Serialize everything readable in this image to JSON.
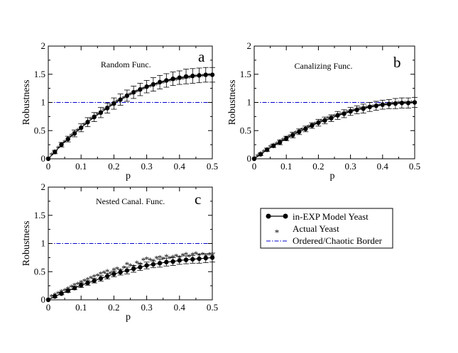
{
  "chart_data": [
    {
      "id": "a",
      "type": "line",
      "title": "Random Func.",
      "letter": "a",
      "xlabel": "p",
      "ylabel": "Robustness",
      "xlim": [
        0,
        0.5
      ],
      "ylim": [
        0,
        2
      ],
      "xticks": [
        0,
        0.1,
        0.2,
        0.3,
        0.4,
        0.5
      ],
      "xtick_labels": [
        "0",
        "0.1",
        "0.2",
        "0.3",
        "0.4",
        "0.5"
      ],
      "yticks": [
        0,
        0.5,
        1,
        1.5,
        2
      ],
      "ytick_labels": [
        "0",
        "0.5",
        "1",
        "1.5",
        "2"
      ],
      "border_y": 1,
      "series": [
        {
          "name": "in-EXP Model Yeast",
          "x": [
            0,
            0.02,
            0.04,
            0.06,
            0.08,
            0.1,
            0.12,
            0.14,
            0.16,
            0.18,
            0.2,
            0.22,
            0.24,
            0.26,
            0.28,
            0.3,
            0.32,
            0.34,
            0.36,
            0.38,
            0.4,
            0.42,
            0.44,
            0.46,
            0.48,
            0.5
          ],
          "y": [
            0,
            0.12,
            0.25,
            0.35,
            0.45,
            0.55,
            0.65,
            0.74,
            0.82,
            0.9,
            0.98,
            1.05,
            1.12,
            1.18,
            1.23,
            1.28,
            1.32,
            1.36,
            1.39,
            1.42,
            1.44,
            1.46,
            1.47,
            1.48,
            1.49,
            1.49
          ],
          "err": [
            0,
            0.03,
            0.04,
            0.05,
            0.06,
            0.07,
            0.08,
            0.08,
            0.09,
            0.09,
            0.1,
            0.1,
            0.1,
            0.11,
            0.11,
            0.11,
            0.12,
            0.12,
            0.12,
            0.12,
            0.12,
            0.13,
            0.13,
            0.13,
            0.13,
            0.13
          ]
        },
        {
          "name": "Actual Yeast",
          "x": [
            0,
            0.01,
            0.02,
            0.03,
            0.04,
            0.05,
            0.06,
            0.07,
            0.08,
            0.09,
            0.1,
            0.11,
            0.12,
            0.13,
            0.14,
            0.15,
            0.16,
            0.17,
            0.18,
            0.19,
            0.2,
            0.21,
            0.22,
            0.23,
            0.24,
            0.25,
            0.26,
            0.27,
            0.28,
            0.29,
            0.3,
            0.31,
            0.32,
            0.33,
            0.34,
            0.35,
            0.36,
            0.37,
            0.38,
            0.39,
            0.4,
            0.41,
            0.42,
            0.43,
            0.44,
            0.45,
            0.46,
            0.47,
            0.48,
            0.49,
            0.5
          ],
          "y": [
            0,
            0.06,
            0.12,
            0.18,
            0.23,
            0.29,
            0.34,
            0.4,
            0.45,
            0.5,
            0.55,
            0.6,
            0.65,
            0.7,
            0.74,
            0.78,
            0.82,
            0.86,
            0.9,
            0.94,
            0.98,
            1.01,
            1.04,
            1.07,
            1.1,
            1.13,
            1.16,
            1.18,
            1.2,
            1.23,
            1.25,
            1.27,
            1.29,
            1.31,
            1.33,
            1.34,
            1.36,
            1.37,
            1.38,
            1.39,
            1.4,
            1.41,
            1.42,
            1.43,
            1.44,
            1.45,
            1.46,
            1.46,
            1.47,
            1.47,
            1.48
          ]
        }
      ]
    },
    {
      "id": "b",
      "type": "line",
      "title": "Canalizing Func.",
      "letter": "b",
      "xlabel": "p",
      "ylabel": "Robustness",
      "xlim": [
        0,
        0.5
      ],
      "ylim": [
        0,
        2
      ],
      "xticks": [
        0,
        0.1,
        0.2,
        0.3,
        0.4,
        0.5
      ],
      "xtick_labels": [
        "0",
        "0.1",
        "0.2",
        "0.3",
        "0.4",
        "0.5"
      ],
      "yticks": [
        0,
        0.5,
        1,
        1.5,
        2
      ],
      "ytick_labels": [
        "0",
        "0.5",
        "1",
        "1.5",
        "2"
      ],
      "border_y": 1,
      "series": [
        {
          "name": "in-EXP Model Yeast",
          "x": [
            0,
            0.02,
            0.04,
            0.06,
            0.08,
            0.1,
            0.12,
            0.14,
            0.16,
            0.18,
            0.2,
            0.22,
            0.24,
            0.26,
            0.28,
            0.3,
            0.32,
            0.34,
            0.36,
            0.38,
            0.4,
            0.42,
            0.44,
            0.46,
            0.48,
            0.5
          ],
          "y": [
            0,
            0.08,
            0.16,
            0.23,
            0.29,
            0.36,
            0.42,
            0.48,
            0.53,
            0.59,
            0.64,
            0.68,
            0.72,
            0.77,
            0.8,
            0.84,
            0.87,
            0.89,
            0.92,
            0.94,
            0.96,
            0.97,
            0.98,
            0.99,
            0.99,
            1.0
          ],
          "err": [
            0,
            0.02,
            0.03,
            0.03,
            0.04,
            0.04,
            0.05,
            0.05,
            0.05,
            0.05,
            0.06,
            0.06,
            0.06,
            0.07,
            0.07,
            0.07,
            0.07,
            0.08,
            0.08,
            0.08,
            0.08,
            0.08,
            0.09,
            0.09,
            0.09,
            0.09
          ]
        },
        {
          "name": "Actual Yeast",
          "x": [
            0,
            0.01,
            0.02,
            0.03,
            0.04,
            0.05,
            0.06,
            0.07,
            0.08,
            0.09,
            0.1,
            0.11,
            0.12,
            0.13,
            0.14,
            0.15,
            0.16,
            0.17,
            0.18,
            0.19,
            0.2,
            0.21,
            0.22,
            0.23,
            0.24,
            0.25,
            0.26,
            0.27,
            0.28,
            0.29,
            0.3,
            0.31,
            0.32,
            0.33,
            0.34,
            0.35,
            0.36,
            0.37,
            0.38,
            0.39,
            0.4,
            0.41,
            0.42,
            0.43,
            0.44,
            0.45,
            0.46,
            0.47,
            0.48,
            0.49,
            0.5
          ],
          "y": [
            0,
            0.04,
            0.08,
            0.12,
            0.16,
            0.2,
            0.23,
            0.26,
            0.3,
            0.33,
            0.36,
            0.39,
            0.42,
            0.45,
            0.48,
            0.51,
            0.53,
            0.56,
            0.59,
            0.61,
            0.64,
            0.66,
            0.68,
            0.71,
            0.73,
            0.75,
            0.77,
            0.78,
            0.8,
            0.82,
            0.84,
            0.85,
            0.86,
            0.88,
            0.89,
            0.9,
            0.91,
            0.92,
            0.93,
            0.94,
            0.95,
            0.95,
            0.96,
            0.97,
            0.97,
            0.98,
            0.98,
            0.98,
            0.99,
            0.99,
            0.99
          ]
        }
      ]
    },
    {
      "id": "c",
      "type": "line",
      "title": "Nested Canal. Func.",
      "letter": "c",
      "xlabel": "p",
      "ylabel": "Robustness",
      "xlim": [
        0,
        0.5
      ],
      "ylim": [
        0,
        2
      ],
      "xticks": [
        0,
        0.1,
        0.2,
        0.3,
        0.4,
        0.5
      ],
      "xtick_labels": [
        "0",
        "0.1",
        "0.2",
        "0.3",
        "0.4",
        "0.5"
      ],
      "yticks": [
        0,
        0.5,
        1,
        1.5,
        2
      ],
      "ytick_labels": [
        "0",
        "0.5",
        "1",
        "1.5",
        "2"
      ],
      "border_y": 1,
      "series": [
        {
          "name": "in-EXP Model Yeast",
          "x": [
            0,
            0.02,
            0.04,
            0.06,
            0.08,
            0.1,
            0.12,
            0.14,
            0.16,
            0.18,
            0.2,
            0.22,
            0.24,
            0.26,
            0.28,
            0.3,
            0.32,
            0.34,
            0.36,
            0.38,
            0.4,
            0.42,
            0.44,
            0.46,
            0.48,
            0.5
          ],
          "y": [
            0,
            0.06,
            0.11,
            0.16,
            0.21,
            0.26,
            0.3,
            0.34,
            0.38,
            0.42,
            0.46,
            0.49,
            0.52,
            0.55,
            0.58,
            0.61,
            0.63,
            0.65,
            0.67,
            0.68,
            0.7,
            0.71,
            0.72,
            0.73,
            0.74,
            0.75
          ],
          "err": [
            0,
            0.02,
            0.02,
            0.03,
            0.03,
            0.04,
            0.04,
            0.04,
            0.05,
            0.05,
            0.05,
            0.05,
            0.06,
            0.06,
            0.06,
            0.06,
            0.06,
            0.07,
            0.07,
            0.07,
            0.07,
            0.07,
            0.07,
            0.08,
            0.08,
            0.08
          ]
        },
        {
          "name": "Actual Yeast",
          "x": [
            0,
            0.01,
            0.02,
            0.03,
            0.04,
            0.05,
            0.06,
            0.07,
            0.08,
            0.09,
            0.1,
            0.11,
            0.12,
            0.13,
            0.14,
            0.15,
            0.16,
            0.17,
            0.18,
            0.19,
            0.2,
            0.21,
            0.22,
            0.23,
            0.24,
            0.25,
            0.26,
            0.27,
            0.28,
            0.29,
            0.3,
            0.31,
            0.32,
            0.33,
            0.34,
            0.35,
            0.36,
            0.37,
            0.38,
            0.39,
            0.4,
            0.41,
            0.42,
            0.43,
            0.44,
            0.45,
            0.46,
            0.47,
            0.48,
            0.49,
            0.5
          ],
          "y": [
            0,
            0.05,
            0.08,
            0.11,
            0.14,
            0.16,
            0.19,
            0.22,
            0.25,
            0.27,
            0.3,
            0.33,
            0.35,
            0.38,
            0.4,
            0.42,
            0.45,
            0.47,
            0.5,
            0.46,
            0.52,
            0.54,
            0.51,
            0.56,
            0.62,
            0.6,
            0.58,
            0.65,
            0.62,
            0.7,
            0.72,
            0.7,
            0.68,
            0.73,
            0.74,
            0.72,
            0.76,
            0.73,
            0.75,
            0.77,
            0.74,
            0.78,
            0.8,
            0.76,
            0.79,
            0.81,
            0.78,
            0.8,
            0.77,
            0.79,
            0.78
          ]
        }
      ]
    }
  ],
  "legend": {
    "position": "right-middle",
    "items": [
      {
        "label": "in-EXP Model Yeast",
        "style": "line-circle"
      },
      {
        "label": "Actual Yeast",
        "style": "star"
      },
      {
        "label": "Ordered/Chaotic Border",
        "style": "dash-dot"
      }
    ]
  },
  "colors": {
    "model": "#000000",
    "actual": "#ff0000",
    "border": "#0000cc",
    "axes": "#000000"
  }
}
